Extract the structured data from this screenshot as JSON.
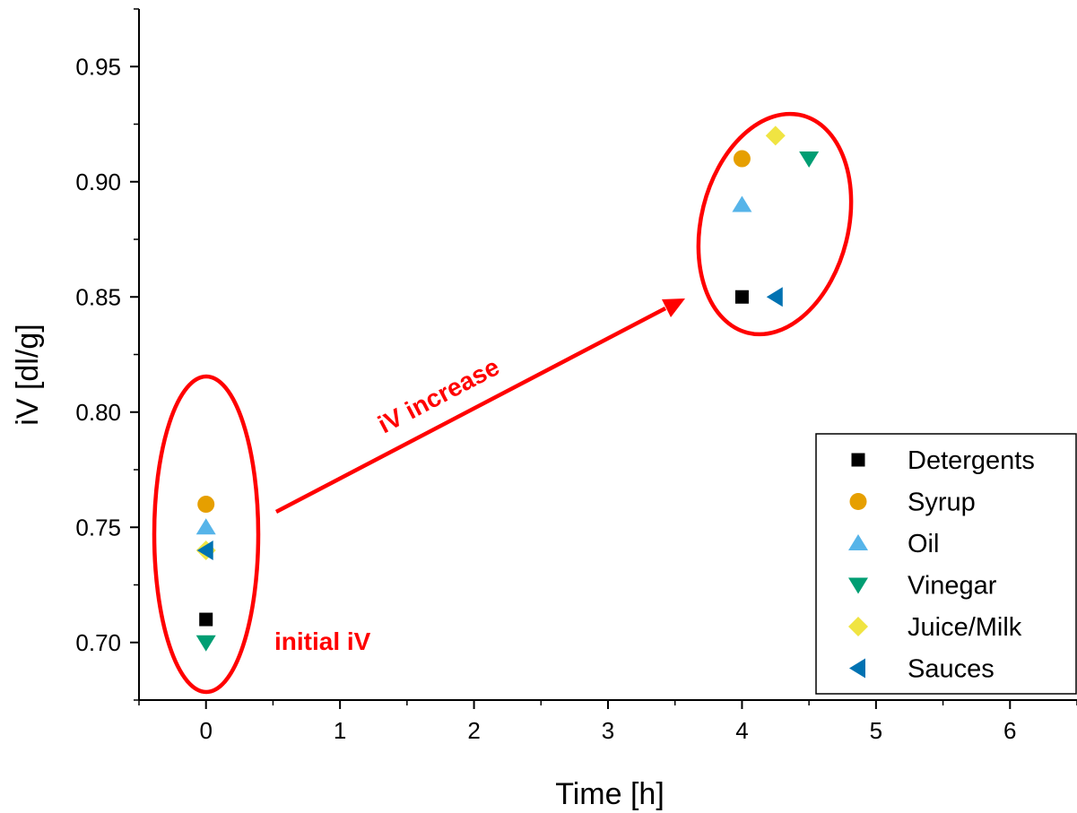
{
  "chart_data": {
    "type": "scatter",
    "xlabel": "Time [h]",
    "ylabel": "iV [dl/g]",
    "xlim": [
      -0.5,
      6.5
    ],
    "ylim": [
      0.675,
      0.975
    ],
    "x_ticks": [
      0,
      1,
      2,
      3,
      4,
      5,
      6
    ],
    "y_ticks": [
      0.7,
      0.75,
      0.8,
      0.85,
      0.9,
      0.95
    ],
    "x_tick_labels": [
      "0",
      "1",
      "2",
      "3",
      "4",
      "5",
      "6"
    ],
    "y_tick_labels": [
      "0.70",
      "0.75",
      "0.80",
      "0.85",
      "0.90",
      "0.95"
    ],
    "grid": false,
    "legend_position": "bottom-right",
    "series": [
      {
        "name": "Detergents",
        "marker": "square",
        "color": "#000000",
        "points": [
          {
            "x": 0,
            "y": 0.71
          },
          {
            "x": 4,
            "y": 0.85
          }
        ]
      },
      {
        "name": "Syrup",
        "marker": "circle",
        "color": "#E69F00",
        "points": [
          {
            "x": 0,
            "y": 0.76
          },
          {
            "x": 4,
            "y": 0.91
          }
        ]
      },
      {
        "name": "Oil",
        "marker": "triangle-up",
        "color": "#56B4E9",
        "points": [
          {
            "x": 0,
            "y": 0.75
          },
          {
            "x": 4,
            "y": 0.89
          }
        ]
      },
      {
        "name": "Vinegar",
        "marker": "triangle-down",
        "color": "#009E73",
        "points": [
          {
            "x": 0,
            "y": 0.7
          },
          {
            "x": 4.5,
            "y": 0.91
          }
        ]
      },
      {
        "name": "Juice/Milk",
        "marker": "diamond",
        "color": "#F0E442",
        "points": [
          {
            "x": 0,
            "y": 0.74
          },
          {
            "x": 4.25,
            "y": 0.92
          }
        ]
      },
      {
        "name": "Sauces",
        "marker": "triangle-left",
        "color": "#0072B2",
        "points": [
          {
            "x": 0,
            "y": 0.74
          },
          {
            "x": 4.25,
            "y": 0.85
          }
        ]
      }
    ],
    "annotations": [
      {
        "text": "initial iV",
        "color": "#ff0000"
      },
      {
        "text": "iV increase",
        "color": "#ff0000"
      }
    ]
  }
}
